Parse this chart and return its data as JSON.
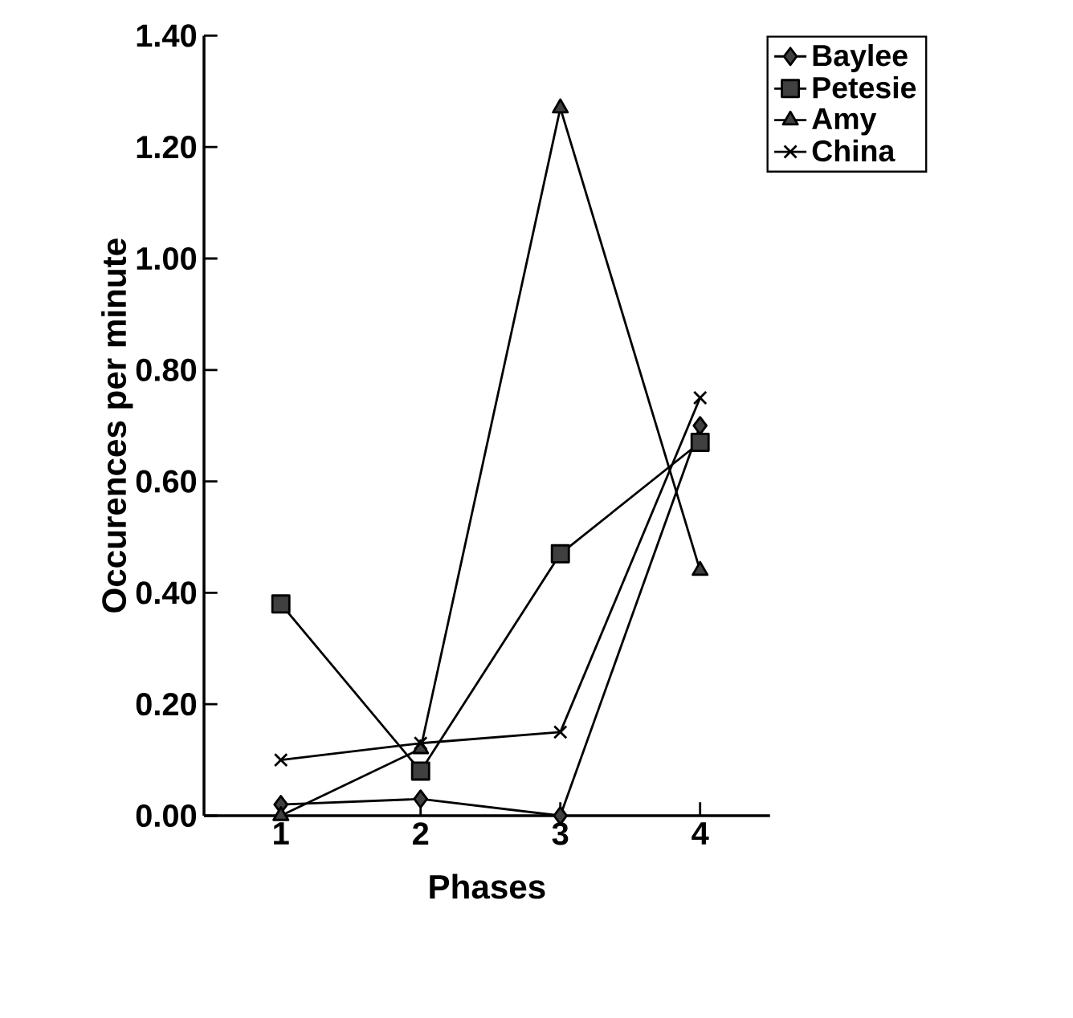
{
  "chart_data": {
    "type": "line",
    "xlabel": "Phases",
    "ylabel": "Occurences per minute",
    "categories": [
      "1",
      "2",
      "3",
      "4"
    ],
    "series": [
      {
        "name": "Baylee",
        "color": "#000000",
        "marker": "diamond",
        "values": [
          0.02,
          0.03,
          0.0,
          0.7
        ]
      },
      {
        "name": "Petesie",
        "color": "#000000",
        "marker": "square",
        "values": [
          0.38,
          0.08,
          0.47,
          0.67
        ]
      },
      {
        "name": "Amy",
        "color": "#000000",
        "marker": "triangle",
        "values": [
          0.0,
          0.12,
          1.27,
          0.44
        ]
      },
      {
        "name": "China",
        "color": "#000000",
        "marker": "cross",
        "values": [
          0.1,
          0.13,
          0.15,
          0.75
        ]
      }
    ],
    "ylim": [
      0,
      1.4
    ],
    "yticks": [
      {
        "value": 0,
        "label": "0.00"
      },
      {
        "value": 0.2,
        "label": "0.20"
      },
      {
        "value": 0.4,
        "label": "0.40"
      },
      {
        "value": 0.6,
        "label": "0.60"
      },
      {
        "value": 0.8,
        "label": "0.80"
      },
      {
        "value": 1.0,
        "label": "1.00"
      },
      {
        "value": 1.2,
        "label": "1.20"
      },
      {
        "value": 1.4,
        "label": "1.40"
      }
    ],
    "grid": false,
    "legend": "top right",
    "line_style": "solid"
  }
}
